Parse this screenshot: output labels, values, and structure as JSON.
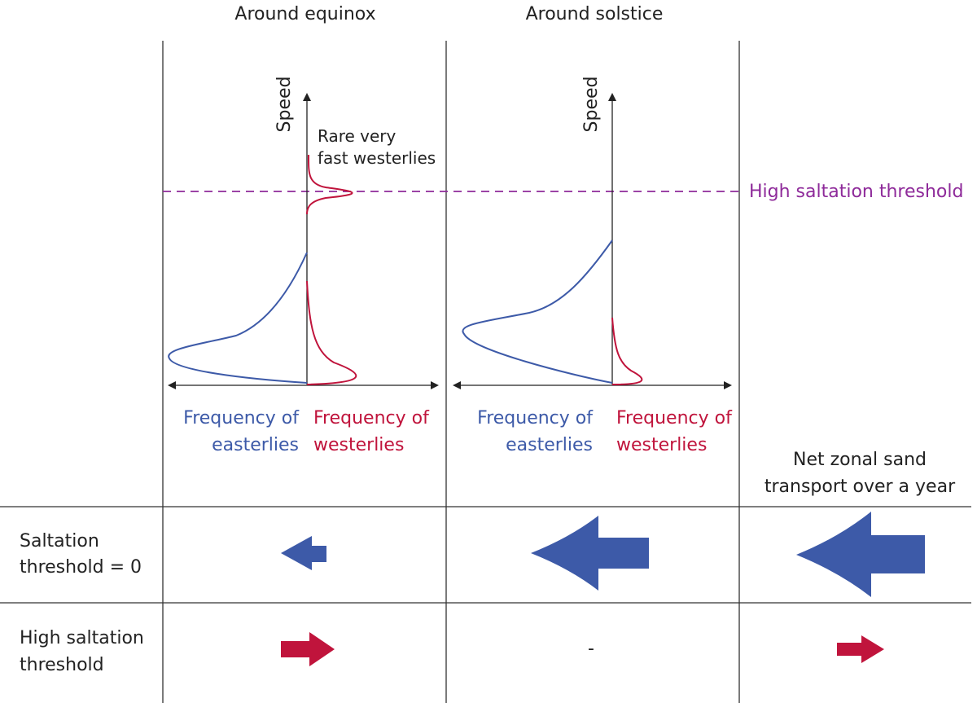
{
  "columns": [
    {
      "title": "Around equinox",
      "axis_label": "Speed",
      "annotation": [
        "Rare very",
        "fast westerlies"
      ],
      "easterlies_label": [
        "Frequency of",
        "easterlies"
      ],
      "westerlies_label": [
        "Frequency of",
        "westerlies"
      ]
    },
    {
      "title": "Around solstice",
      "axis_label": "Speed",
      "easterlies_label": [
        "Frequency of",
        "easterlies"
      ],
      "westerlies_label": [
        "Frequency of",
        "westerlies"
      ]
    },
    {
      "title": [
        "Net zonal sand",
        "transport over a year"
      ]
    }
  ],
  "threshold_line_label": "High saltation threshold",
  "rows": [
    {
      "label": [
        "Saltation",
        "threshold = 0"
      ]
    },
    {
      "label": [
        "High saltation",
        "threshold"
      ],
      "solstice_cell": "-"
    }
  ]
}
